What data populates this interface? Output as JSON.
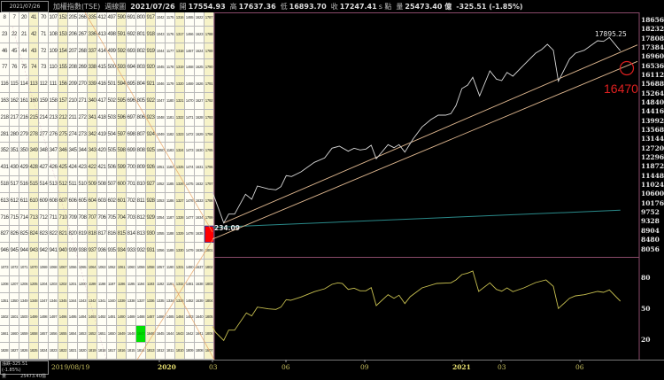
{
  "header": {
    "date_box": "2021/07/26",
    "index_name": "加權指數(TSE)",
    "chart_type": "週線圖",
    "date": "2021/07/26",
    "open_label": "開",
    "open": "17554.93",
    "high_label": "高",
    "high": "17637.36",
    "low_label": "低",
    "low": "16893.70",
    "close_label": "收",
    "close": "17247.41",
    "close_unit": "s 點",
    "volume_label": "量",
    "volume": "25473.40 億",
    "change": "-325.51 (-1.85%)"
  },
  "info_box": {
    "change_label": "漲跌",
    "change": "-325.51 (-1.85%)",
    "volume_label": "量",
    "volume": "25473.40億"
  },
  "grid": {
    "highlight_red": "1800",
    "highlight_green": "1647",
    "rows": [
      [
        "8",
        "7",
        "20",
        "41",
        "70",
        "107",
        "152",
        "205",
        "266",
        "335",
        "412",
        "497",
        "590",
        "691",
        "800",
        "917",
        "1042",
        "1175",
        "1316",
        "1465",
        "1622",
        "1787"
      ],
      [
        "23",
        "22",
        "21",
        "42",
        "71",
        "108",
        "153",
        "206",
        "267",
        "336",
        "413",
        "498",
        "591",
        "692",
        "801",
        "918",
        "1043",
        "1176",
        "1317",
        "1466",
        "1623",
        "1788"
      ],
      [
        "46",
        "45",
        "44",
        "43",
        "72",
        "109",
        "154",
        "207",
        "268",
        "337",
        "414",
        "499",
        "592",
        "693",
        "802",
        "919",
        "1044",
        "1177",
        "1318",
        "1467",
        "1624",
        "1789"
      ],
      [
        "77",
        "76",
        "75",
        "74",
        "73",
        "110",
        "155",
        "208",
        "269",
        "338",
        "415",
        "500",
        "593",
        "694",
        "803",
        "920",
        "1045",
        "1178",
        "1319",
        "1468",
        "1625",
        "1790"
      ],
      [
        "116",
        "115",
        "114",
        "113",
        "112",
        "111",
        "156",
        "209",
        "270",
        "339",
        "416",
        "501",
        "594",
        "695",
        "804",
        "921",
        "1046",
        "1179",
        "1320",
        "1469",
        "1626",
        "1791"
      ],
      [
        "163",
        "162",
        "161",
        "160",
        "159",
        "158",
        "157",
        "210",
        "271",
        "340",
        "417",
        "502",
        "595",
        "696",
        "805",
        "922",
        "1047",
        "1180",
        "1321",
        "1470",
        "1627",
        "1792"
      ],
      [
        "218",
        "217",
        "216",
        "215",
        "214",
        "213",
        "212",
        "211",
        "272",
        "341",
        "418",
        "503",
        "596",
        "697",
        "806",
        "923",
        "1048",
        "1181",
        "1322",
        "1471",
        "1628",
        "1793"
      ],
      [
        "281",
        "280",
        "279",
        "278",
        "277",
        "276",
        "275",
        "274",
        "273",
        "342",
        "419",
        "504",
        "597",
        "698",
        "807",
        "924",
        "1049",
        "1182",
        "1323",
        "1472",
        "1629",
        "1794"
      ],
      [
        "352",
        "351",
        "350",
        "349",
        "348",
        "347",
        "346",
        "345",
        "344",
        "343",
        "420",
        "505",
        "598",
        "699",
        "808",
        "925",
        "1050",
        "1183",
        "1324",
        "1473",
        "1630",
        "1795"
      ],
      [
        "431",
        "430",
        "429",
        "428",
        "427",
        "426",
        "425",
        "424",
        "423",
        "422",
        "421",
        "506",
        "599",
        "700",
        "809",
        "926",
        "1051",
        "1184",
        "1325",
        "1474",
        "1631",
        "1796"
      ],
      [
        "518",
        "517",
        "516",
        "515",
        "514",
        "513",
        "512",
        "511",
        "510",
        "509",
        "508",
        "507",
        "600",
        "701",
        "810",
        "927",
        "1052",
        "1185",
        "1326",
        "1475",
        "1632",
        "1797"
      ],
      [
        "613",
        "612",
        "611",
        "610",
        "609",
        "608",
        "607",
        "606",
        "605",
        "604",
        "603",
        "602",
        "601",
        "702",
        "811",
        "928",
        "1053",
        "1186",
        "1327",
        "1476",
        "1633",
        "1798"
      ],
      [
        "716",
        "715",
        "714",
        "713",
        "712",
        "711",
        "710",
        "709",
        "708",
        "707",
        "706",
        "705",
        "704",
        "703",
        "812",
        "929",
        "1054",
        "1187",
        "1328",
        "1477",
        "1634",
        "1799"
      ],
      [
        "827",
        "826",
        "825",
        "824",
        "823",
        "822",
        "821",
        "820",
        "819",
        "818",
        "817",
        "816",
        "815",
        "814",
        "813",
        "930",
        "1055",
        "1188",
        "1329",
        "1478",
        "1635",
        "1800"
      ],
      [
        "946",
        "945",
        "944",
        "943",
        "942",
        "941",
        "940",
        "939",
        "938",
        "937",
        "936",
        "935",
        "934",
        "933",
        "932",
        "931",
        "1056",
        "1189",
        "1330",
        "1479",
        "1636",
        "1801"
      ],
      [
        "1073",
        "1072",
        "1071",
        "1070",
        "1069",
        "1068",
        "1067",
        "1066",
        "1065",
        "1064",
        "1063",
        "1062",
        "1061",
        "1060",
        "1059",
        "1058",
        "1057",
        "1190",
        "1331",
        "1480",
        "1637",
        "1802"
      ],
      [
        "1208",
        "1207",
        "1206",
        "1205",
        "1204",
        "1203",
        "1202",
        "1201",
        "1200",
        "1199",
        "1198",
        "1197",
        "1196",
        "1195",
        "1194",
        "1193",
        "1192",
        "1191",
        "1332",
        "1481",
        "1638",
        "1803"
      ],
      [
        "1351",
        "1350",
        "1349",
        "1348",
        "1347",
        "1346",
        "1345",
        "1344",
        "1343",
        "1342",
        "1341",
        "1340",
        "1339",
        "1338",
        "1337",
        "1336",
        "1335",
        "1334",
        "1333",
        "1482",
        "1639",
        "1804"
      ],
      [
        "1502",
        "1501",
        "1500",
        "1499",
        "1498",
        "1497",
        "1496",
        "1495",
        "1494",
        "1493",
        "1492",
        "1491",
        "1490",
        "1489",
        "1488",
        "1487",
        "1486",
        "1485",
        "1484",
        "1483",
        "1640",
        "1805"
      ],
      [
        "1661",
        "1660",
        "1659",
        "1658",
        "1657",
        "1656",
        "1655",
        "1654",
        "1653",
        "1652",
        "1651",
        "1650",
        "1649",
        "1648",
        "1647",
        "1646",
        "1645",
        "1644",
        "1643",
        "1642",
        "1641",
        "1806"
      ],
      [
        "1828",
        "1827",
        "1826",
        "1825",
        "1824",
        "1823",
        "1822",
        "1821",
        "1820",
        "1819",
        "1818",
        "1817",
        "1816",
        "1815",
        "1814",
        "1813",
        "1812",
        "1811",
        "1810",
        "1809",
        "1808",
        "1807"
      ]
    ]
  },
  "chart": {
    "price_axis": [
      "18656",
      "18232",
      "17808",
      "17384",
      "16960",
      "16536",
      "16112",
      "15688",
      "15264",
      "14840",
      "14416",
      "13992",
      "13568",
      "13144",
      "12720",
      "12296",
      "11872",
      "11448",
      "11024",
      "10600",
      "10176",
      "9752",
      "9328",
      "8904",
      "8480",
      "8056"
    ],
    "indicator_axis": [
      "80",
      "50",
      "20"
    ],
    "x_axis": [
      "2019/08/19",
      "2020",
      "03",
      "06",
      "09",
      "2021",
      "03",
      "06"
    ],
    "high_annotation": "17895.25",
    "low_annotation": "234.09",
    "target_annotation": "16470",
    "colors": {
      "price_line": "#d8d8d8",
      "trend_line": "#e0b890",
      "ma_line": "#2a8a8a",
      "indicator_line": "#c8c050",
      "target": "#e02020",
      "frame": "#8a4a6a"
    }
  }
}
